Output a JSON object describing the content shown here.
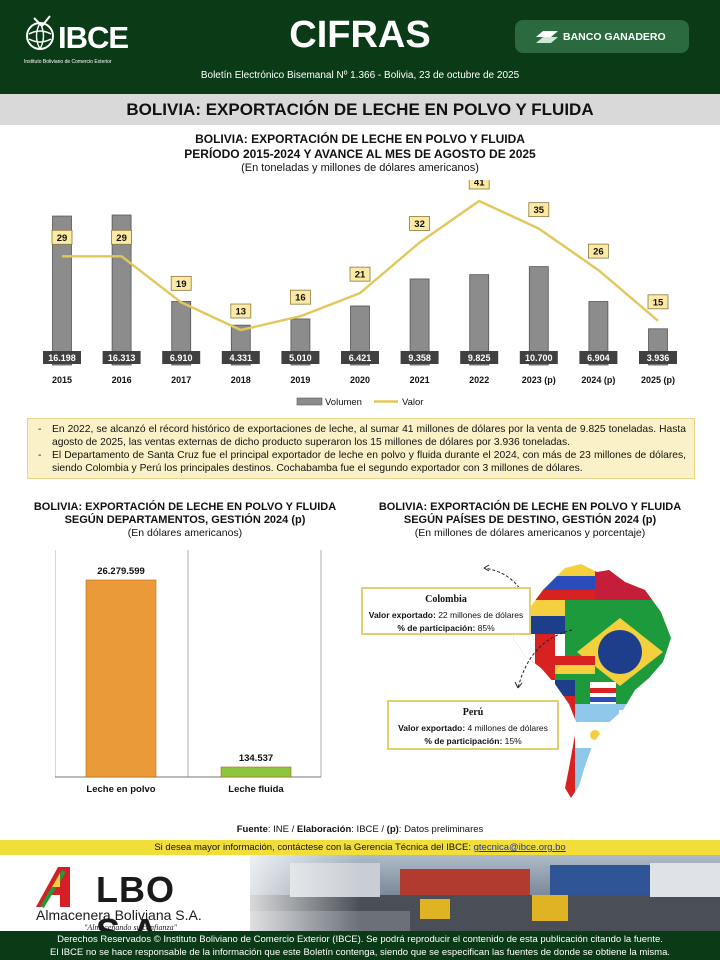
{
  "header": {
    "logo_text": "IBCE",
    "logo_sub": "Instituto Boliviano de Comercio Exterior",
    "title": "CIFRAS",
    "bank": "BANCO GANADERO",
    "subtitle": "Boletín Electrónico Bisemanal Nº 1.366 - Bolivia, 23 de octubre de 2025"
  },
  "band_title": "BOLIVIA: EXPORTACIÓN DE LECHE EN POLVO Y FLUIDA",
  "main_chart": {
    "title1": "BOLIVIA: EXPORTACIÓN DE LECHE EN POLVO Y FLUIDA",
    "title2": "PERÍODO 2015-2024 Y AVANCE AL MES DE AGOSTO DE 2025",
    "unit": "(En toneladas y millones de dólares americanos)"
  },
  "chart_data": [
    {
      "type": "bar",
      "categories": [
        "2015",
        "2016",
        "2017",
        "2018",
        "2019",
        "2020",
        "2021",
        "2022",
        "2023 (p)",
        "2024 (p)",
        "2025 (p)"
      ],
      "series": [
        {
          "name": "Volumen",
          "type": "bar",
          "values": [
            16198,
            16313,
            6910,
            4331,
            5010,
            6421,
            9358,
            9825,
            10700,
            6904,
            3936
          ],
          "labels": [
            "16.198",
            "16.313",
            "6.910",
            "4.331",
            "5.010",
            "6.421",
            "9.358",
            "9.825",
            "10.700",
            "6.904",
            "3.936"
          ],
          "color": "#8c8c8c"
        },
        {
          "name": "Valor",
          "type": "line",
          "values": [
            29,
            29,
            19,
            13,
            16,
            21,
            32,
            41,
            35,
            26,
            15
          ],
          "labels": [
            "29",
            "29",
            "19",
            "13",
            "16",
            "21",
            "32",
            "41",
            "35",
            "26",
            "15"
          ],
          "color": "#e3c75a"
        }
      ],
      "legend": "bottom"
    },
    {
      "type": "bar",
      "categories": [
        "Leche en polvo",
        "Leche fluida"
      ],
      "values": [
        26279599,
        134537
      ],
      "labels": [
        "26.279.599",
        "134.537"
      ],
      "colors": [
        "#eb9a3a",
        "#8cc63f"
      ]
    }
  ],
  "notes": [
    "En 2022, se alcanzó el récord histórico de exportaciones de leche, al sumar 41 millones de dólares por la venta de 9.825 toneladas. Hasta agosto de 2025, las ventas externas de dicho producto superaron los 15 millones de dólares por 3.936 toneladas.",
    "El Departamento de Santa Cruz fue el principal exportador de leche en polvo y fluida durante el 2024, con más de 23 millones de dólares, siendo Colombia y Perú los principales destinos. Cochabamba fue el segundo exportador con 3 millones de dólares."
  ],
  "dept_chart": {
    "title1": "BOLIVIA: EXPORTACIÓN DE LECHE EN POLVO Y FLUIDA",
    "title2": "SEGÚN DEPARTAMENTOS, GESTIÓN 2024 (p)",
    "unit": "(En dólares americanos)"
  },
  "map_section": {
    "title1": "BOLIVIA: EXPORTACIÓN DE LECHE EN POLVO Y FLUIDA",
    "title2": "SEGÚN PAÍSES DE DESTINO, GESTIÓN 2024 (p)",
    "unit": "(En millones de dólares americanos y porcentaje)",
    "callouts": [
      {
        "country": "Colombia",
        "value_label": "Valor exportado:",
        "value": " 22 millones de dólares",
        "share_label": "% de participación:",
        "share": " 85%"
      },
      {
        "country": "Perú",
        "value_label": "Valor exportado:",
        "value": " 4 millones de dólares",
        "share_label": "% de participación:",
        "share": " 15%"
      }
    ]
  },
  "source": {
    "label1": "Fuente",
    "text1": ":  INE / ",
    "label2": "Elaboración",
    "text2": ": IBCE / ",
    "label3": "(p)",
    "text3": ": Datos preliminares"
  },
  "contact": {
    "text": "Si desea mayor información, contáctese con la Gerencia Técnica del IBCE: ",
    "email": "gtecnica@ibce.org.bo"
  },
  "ad": {
    "brand": "LBO S.A.",
    "name": "Almacenera Boliviana S.A.",
    "slogan": "\"Almacenando su confianza\""
  },
  "footer": {
    "line1": "Derechos Reservados © Instituto Boliviano de Comercio Exterior (IBCE). Se podrá reproducir el contenido de esta publicación citando la fuente.",
    "line2": "El IBCE no se hace responsable de la información que este Boletín contenga, siendo que se especifican las fuentes de donde se obtiene la misma."
  }
}
